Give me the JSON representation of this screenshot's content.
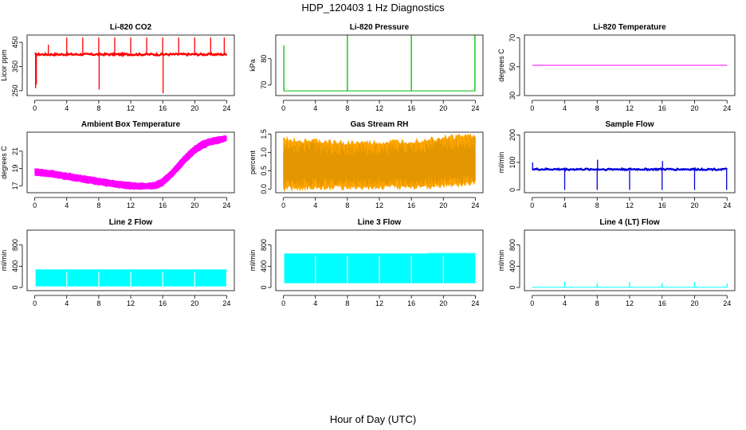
{
  "figure": {
    "title": "HDP_120403  1 Hz Diagnostics",
    "xlabel": "Hour of Day (UTC)"
  },
  "chart_data": [
    {
      "type": "line",
      "title": "Li-820 CO2",
      "xlabel": "",
      "ylabel": "Licor ppm",
      "color": "#ff0000",
      "xlim": [
        0,
        24
      ],
      "ylim": [
        230,
        480
      ],
      "xticks": [
        0,
        4,
        8,
        12,
        16,
        20,
        24
      ],
      "yticks": [
        250,
        350,
        450
      ],
      "ytick_labels": [
        "250",
        "350",
        "450"
      ],
      "baseline": 400,
      "noise": 8,
      "spikes": [
        {
          "x": 0.1,
          "y": 260
        },
        {
          "x": 0.2,
          "y": 275
        },
        {
          "x": 1.7,
          "y": 440
        },
        {
          "x": 4.0,
          "y": 470
        },
        {
          "x": 6.0,
          "y": 470
        },
        {
          "x": 8.0,
          "y": 470
        },
        {
          "x": 8.05,
          "y": 255
        },
        {
          "x": 10.0,
          "y": 470
        },
        {
          "x": 12.0,
          "y": 470
        },
        {
          "x": 14.0,
          "y": 470
        },
        {
          "x": 16.0,
          "y": 470
        },
        {
          "x": 16.05,
          "y": 240
        },
        {
          "x": 18.0,
          "y": 470
        },
        {
          "x": 20.0,
          "y": 470
        },
        {
          "x": 22.0,
          "y": 470
        },
        {
          "x": 23.7,
          "y": 470
        }
      ]
    },
    {
      "type": "line",
      "title": "Li-820 Pressure",
      "xlabel": "",
      "ylabel": "kPa",
      "color": "#00bb00",
      "xlim": [
        0,
        24
      ],
      "ylim": [
        66,
        89
      ],
      "xticks": [
        0,
        4,
        8,
        12,
        16,
        20,
        24
      ],
      "yticks": [
        70,
        80
      ],
      "ytick_labels": [
        "70",
        "80"
      ],
      "baseline": 67.8,
      "spikes": [
        {
          "x": 0.05,
          "y": 85
        },
        {
          "x": 8.0,
          "y": 89
        },
        {
          "x": 16.0,
          "y": 89
        },
        {
          "x": 23.95,
          "y": 89
        }
      ]
    },
    {
      "type": "line",
      "title": "Li-820 Temperature",
      "xlabel": "",
      "ylabel": "degrees C",
      "color": "#ff00ff",
      "xlim": [
        0,
        24
      ],
      "ylim": [
        30,
        72
      ],
      "xticks": [
        0,
        4,
        8,
        12,
        16,
        20,
        24
      ],
      "yticks": [
        30,
        50,
        70
      ],
      "ytick_labels": [
        "30",
        "50",
        "70"
      ],
      "baseline": 51
    },
    {
      "type": "area",
      "title": "Ambient Box Temperature",
      "xlabel": "",
      "ylabel": "degrees C",
      "color": "#ff00ff",
      "xlim": [
        0,
        24
      ],
      "ylim": [
        16.2,
        23.2
      ],
      "xticks": [
        0,
        4,
        8,
        12,
        16,
        20,
        24
      ],
      "yticks": [
        17,
        19,
        21
      ],
      "ytick_labels": [
        "17",
        "19",
        "21"
      ],
      "x": [
        0,
        2,
        4,
        6,
        8,
        10,
        12,
        14,
        15,
        16,
        17,
        18,
        19,
        20,
        21,
        22,
        23,
        24
      ],
      "lower": [
        18.2,
        18.0,
        17.7,
        17.4,
        17.1,
        16.8,
        16.6,
        16.6,
        16.6,
        17.0,
        17.8,
        18.8,
        19.8,
        20.7,
        21.3,
        21.7,
        21.9,
        22.2
      ],
      "upper": [
        19.0,
        18.8,
        18.5,
        18.2,
        17.9,
        17.6,
        17.4,
        17.3,
        17.4,
        17.9,
        18.7,
        19.8,
        20.8,
        21.6,
        22.2,
        22.5,
        22.7,
        22.8
      ]
    },
    {
      "type": "area",
      "title": "Gas Stream RH",
      "xlabel": "",
      "ylabel": "percent",
      "color": "#ffa500",
      "xlim": [
        0,
        24
      ],
      "ylim": [
        -0.1,
        1.55
      ],
      "xticks": [
        0,
        4,
        8,
        12,
        16,
        20,
        24
      ],
      "yticks": [
        0.0,
        0.5,
        1.0,
        1.5
      ],
      "ytick_labels": [
        "0.0",
        "0.5",
        "1.0",
        "1.5"
      ],
      "x": [
        0,
        4,
        8,
        12,
        16,
        20,
        24
      ],
      "lower": [
        0.0,
        0.05,
        0.05,
        0.05,
        0.05,
        0.1,
        0.15
      ],
      "upper": [
        1.35,
        1.3,
        1.25,
        1.25,
        1.3,
        1.4,
        1.45
      ]
    },
    {
      "type": "line",
      "title": "Sample Flow",
      "xlabel": "",
      "ylabel": "ml/min",
      "color": "#0000dd",
      "xlim": [
        0,
        24
      ],
      "ylim": [
        -10,
        210
      ],
      "xticks": [
        0,
        4,
        8,
        12,
        16,
        20,
        24
      ],
      "yticks": [
        0,
        100,
        200
      ],
      "ytick_labels": [
        "0",
        "100",
        "200"
      ],
      "baseline": 75,
      "noise": 6,
      "spikes": [
        {
          "x": 0.05,
          "y": 100
        },
        {
          "x": 4.0,
          "y": 0
        },
        {
          "x": 8.0,
          "y": 0
        },
        {
          "x": 8.05,
          "y": 110
        },
        {
          "x": 12.0,
          "y": 0
        },
        {
          "x": 16.0,
          "y": 0
        },
        {
          "x": 16.05,
          "y": 105
        },
        {
          "x": 20.0,
          "y": 0
        },
        {
          "x": 23.95,
          "y": 0
        }
      ]
    },
    {
      "type": "area",
      "title": "Line 2 Flow",
      "xlabel": "",
      "ylabel": "ml/min",
      "color": "#00ffff",
      "xlim": [
        0,
        24
      ],
      "ylim": [
        -60,
        1080
      ],
      "xticks": [
        0,
        4,
        8,
        12,
        16,
        20,
        24
      ],
      "yticks": [
        0,
        400,
        800
      ],
      "ytick_labels": [
        "0",
        "400",
        "800"
      ],
      "x": [
        0.1,
        24
      ],
      "lower": [
        20,
        20
      ],
      "upper": [
        340,
        340
      ],
      "gaps": [
        4,
        8,
        12,
        16,
        20,
        24
      ]
    },
    {
      "type": "area",
      "title": "Line 3 Flow",
      "xlabel": "",
      "ylabel": "ml/min",
      "color": "#00ffff",
      "xlim": [
        0,
        24
      ],
      "ylim": [
        -60,
        1080
      ],
      "xticks": [
        0,
        4,
        8,
        12,
        16,
        20,
        24
      ],
      "yticks": [
        0,
        400,
        800
      ],
      "ytick_labels": [
        "0",
        "400",
        "800"
      ],
      "x": [
        0.1,
        24
      ],
      "lower": [
        80,
        80
      ],
      "upper": [
        640,
        650
      ],
      "gaps": [
        4,
        8,
        12,
        16,
        20
      ]
    },
    {
      "type": "line",
      "title": "Line 4 (LT) Flow",
      "xlabel": "",
      "ylabel": "ml/min",
      "color": "#00ffff",
      "xlim": [
        0,
        24
      ],
      "ylim": [
        -60,
        1080
      ],
      "xticks": [
        0,
        4,
        8,
        12,
        16,
        20,
        24
      ],
      "yticks": [
        0,
        400,
        800
      ],
      "ytick_labels": [
        "0",
        "400",
        "800"
      ],
      "baseline": 5,
      "spikes": [
        {
          "x": 4.0,
          "y": 110
        },
        {
          "x": 8.0,
          "y": 80
        },
        {
          "x": 12.0,
          "y": 100
        },
        {
          "x": 16.0,
          "y": 80
        },
        {
          "x": 20.0,
          "y": 100
        },
        {
          "x": 24.0,
          "y": 70
        }
      ]
    }
  ]
}
